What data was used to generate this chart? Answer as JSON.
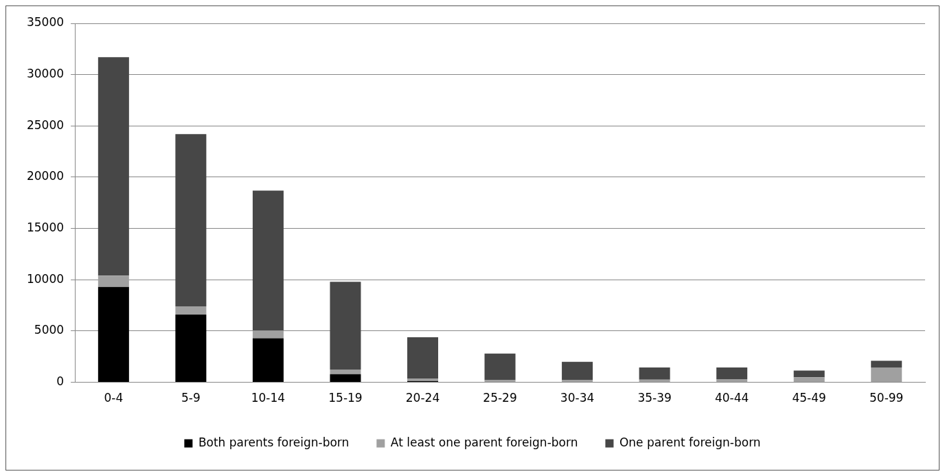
{
  "chart_data": {
    "type": "bar",
    "stacked": true,
    "categories": [
      "0-4",
      "5-9",
      "10-14",
      "15-19",
      "20-24",
      "25-29",
      "30-34",
      "35-39",
      "40-44",
      "45-49",
      "50-99"
    ],
    "series": [
      {
        "name": "Both parents foreign-born",
        "color": "#000000",
        "values": [
          9300,
          6600,
          4300,
          800,
          120,
          0,
          0,
          0,
          0,
          0,
          0
        ]
      },
      {
        "name": "At least one parent foreign-born",
        "color": "#a0a0a0",
        "values": [
          1100,
          800,
          750,
          450,
          220,
          200,
          200,
          250,
          300,
          500,
          1450
        ]
      },
      {
        "name": "One parent foreign-born",
        "color": "#474747",
        "values": [
          21300,
          16800,
          13650,
          8550,
          4060,
          2600,
          1800,
          1200,
          1150,
          650,
          650
        ]
      }
    ],
    "ylim": [
      0,
      35000
    ],
    "yticks": [
      0,
      5000,
      10000,
      15000,
      20000,
      25000,
      30000,
      35000
    ],
    "grid": "y",
    "legend": "bottom"
  }
}
